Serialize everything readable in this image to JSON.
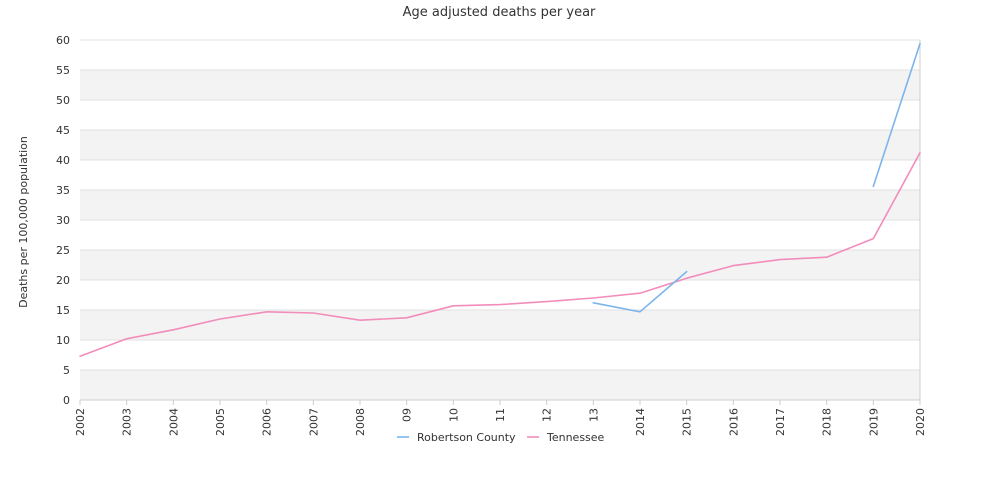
{
  "chart_data": {
    "type": "line",
    "title": "Age adjusted deaths per year",
    "xlabel": "",
    "ylabel": "Deaths per 100,000 population",
    "categories": [
      "2002",
      "2003",
      "2004",
      "2005",
      "2006",
      "2007",
      "2008",
      "09",
      "10",
      "11",
      "12",
      "13",
      "2014",
      "2015",
      "2016",
      "2017",
      "2018",
      "2019",
      "2020"
    ],
    "ylim": [
      0,
      60
    ],
    "yticks": [
      0,
      5,
      10,
      15,
      20,
      25,
      30,
      35,
      40,
      45,
      50,
      55,
      60
    ],
    "grid": true,
    "legend": "bottom-center",
    "series": [
      {
        "name": "Robertson County",
        "color": "#7cb5ec",
        "values": [
          null,
          null,
          null,
          null,
          null,
          null,
          null,
          null,
          null,
          null,
          null,
          16.2,
          14.7,
          21.4,
          null,
          null,
          null,
          35.6,
          59.4
        ]
      },
      {
        "name": "Tennessee",
        "color": "#f28cbb",
        "values": [
          7.3,
          10.2,
          11.7,
          13.5,
          14.7,
          14.5,
          13.3,
          13.7,
          15.7,
          15.9,
          16.4,
          17.0,
          17.8,
          20.3,
          22.4,
          23.4,
          23.8,
          26.9,
          41.2
        ]
      }
    ]
  }
}
